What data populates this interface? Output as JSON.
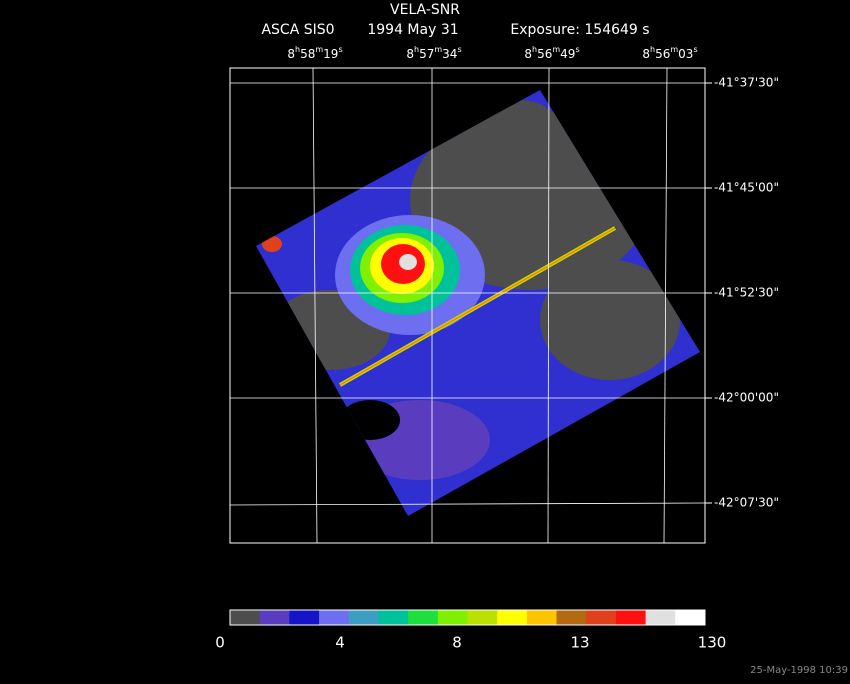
{
  "header": {
    "title": "VELA-SNR",
    "instrument": "ASCA SIS0",
    "date": "1994 May 31",
    "exposure": "Exposure: 154649 s"
  },
  "ra_labels": [
    [
      "8",
      "h",
      "58",
      "m",
      "19",
      "s"
    ],
    [
      "8",
      "h",
      "57",
      "m",
      "34",
      "s"
    ],
    [
      "8",
      "h",
      "56",
      "m",
      "49",
      "s"
    ],
    [
      "8",
      "h",
      "56",
      "m",
      "03",
      "s"
    ]
  ],
  "dec_labels": [
    "-41°37'30\"",
    "-41°45'00\"",
    "-41°52'30\"",
    "-42°00'00\"",
    "-42°07'30\""
  ],
  "colorbar": {
    "colors": [
      "#4d4d4d",
      "#5a3cbe",
      "#1414c8",
      "#6e6ef0",
      "#3c9ec0",
      "#00c29a",
      "#1ee03c",
      "#7ef000",
      "#bce000",
      "#ffff00",
      "#ffc400",
      "#b46a10",
      "#e0401c",
      "#ff1010",
      "#e0e0e0",
      "#ffffff"
    ],
    "labels": [
      "0",
      "4",
      "8",
      "13",
      "130"
    ]
  },
  "timestamp": "25-May-1998 10:39"
}
